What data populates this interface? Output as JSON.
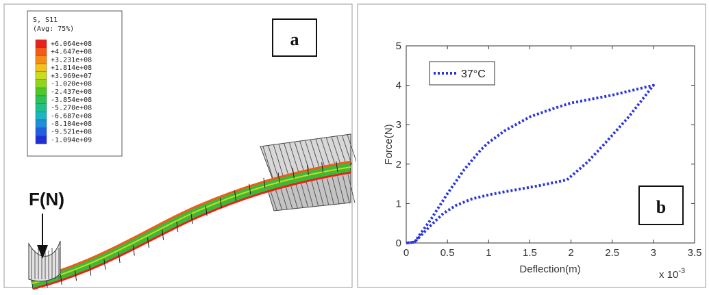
{
  "panel_a": {
    "label": "a",
    "legend": {
      "title": "S, S11",
      "subtitle": "(Avg: 75%)",
      "values": [
        "+6.064e+08",
        "+4.647e+08",
        "+3.231e+08",
        "+1.814e+08",
        "+3.969e+07",
        "-1.020e+08",
        "-2.437e+08",
        "-3.854e+08",
        "-5.270e+08",
        "-6.687e+08",
        "-8.104e+08",
        "-9.521e+08",
        "-1.094e+09"
      ],
      "colors": [
        "#e8221a",
        "#f25a16",
        "#f58c1a",
        "#f5c21c",
        "#c9dc1e",
        "#8fd41f",
        "#4cc82a",
        "#2cc255",
        "#20c08c",
        "#1ab6c4",
        "#1e8fdc",
        "#1f5fe0",
        "#1f2fd8"
      ]
    },
    "force_label": "F(N)"
  },
  "chart_data": {
    "type": "line",
    "label": "b",
    "xlabel": "Deflection(m)",
    "ylabel": "Force(N)",
    "x_multiplier": "x 10",
    "x_multiplier_exp": "-3",
    "xlim": [
      0,
      3.5
    ],
    "ylim": [
      0,
      5
    ],
    "xticks": [
      "0",
      "0.5",
      "1",
      "1.5",
      "2",
      "2.5",
      "3",
      "3.5"
    ],
    "yticks": [
      "0",
      "1",
      "2",
      "3",
      "4",
      "5"
    ],
    "grid": false,
    "legend_position": "top-left",
    "series": [
      {
        "name": "37°C",
        "color": "#2a35e0",
        "x": [
          0,
          0.1,
          0.3,
          0.5,
          0.7,
          0.9,
          1.0,
          1.2,
          1.5,
          1.8,
          2.0,
          2.5,
          3.0,
          2.7,
          2.4,
          2.2,
          1.95,
          1.6,
          1.2,
          1.0,
          0.8,
          0.6,
          0.45,
          0.3,
          0.1,
          0
        ],
        "y": [
          0,
          0.02,
          0.6,
          1.25,
          1.85,
          2.35,
          2.55,
          2.85,
          3.2,
          3.42,
          3.55,
          3.75,
          4.0,
          3.2,
          2.5,
          2.05,
          1.6,
          1.45,
          1.3,
          1.22,
          1.12,
          0.95,
          0.75,
          0.45,
          0.02,
          0
        ]
      }
    ]
  }
}
